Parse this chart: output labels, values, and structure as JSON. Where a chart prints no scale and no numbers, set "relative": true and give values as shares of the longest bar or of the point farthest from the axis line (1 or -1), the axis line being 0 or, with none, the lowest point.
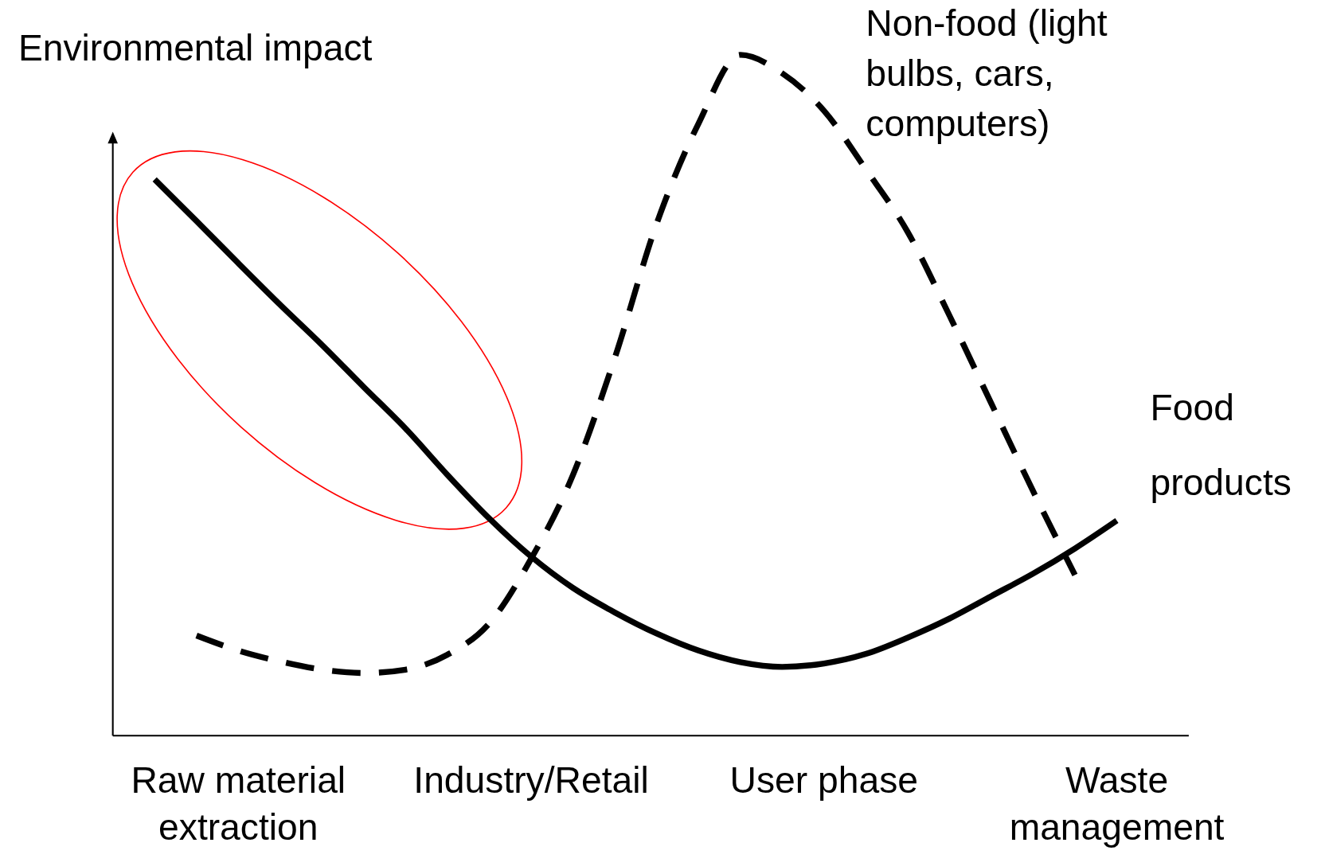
{
  "chart_data": {
    "type": "line",
    "relative": true,
    "ylabel": "Environmental impact",
    "categories": [
      null,
      null,
      "Raw material extraction",
      null,
      null,
      null,
      null,
      null,
      null,
      "Industry/Retail",
      null,
      null,
      null,
      null,
      null,
      null,
      "User phase",
      null,
      null,
      null,
      null,
      null,
      null,
      "Waste management"
    ],
    "series": [
      {
        "name": "Food products",
        "color": "#000000",
        "line_style": "solid",
        "values": [
          0.817,
          0.756,
          0.694,
          0.633,
          0.574,
          0.512,
          0.451,
          0.383,
          0.319,
          0.263,
          0.217,
          0.181,
          0.15,
          0.125,
          0.108,
          0.101,
          0.106,
          0.12,
          0.144,
          0.172,
          0.205,
          0.238,
          0.275,
          0.316
        ]
      },
      {
        "name": "Non-food (light bulbs, cars, computers)",
        "color": "#000000",
        "line_style": "dashed",
        "values": [
          null,
          0.147,
          0.125,
          0.109,
          0.097,
          0.092,
          0.097,
          0.119,
          0.165,
          0.26,
          0.383,
          0.555,
          0.752,
          0.899,
          1,
          0.973,
          0.918,
          0.832,
          0.74,
          0.617,
          0.488,
          0.359,
          0.236,
          null
        ]
      }
    ]
  }
}
